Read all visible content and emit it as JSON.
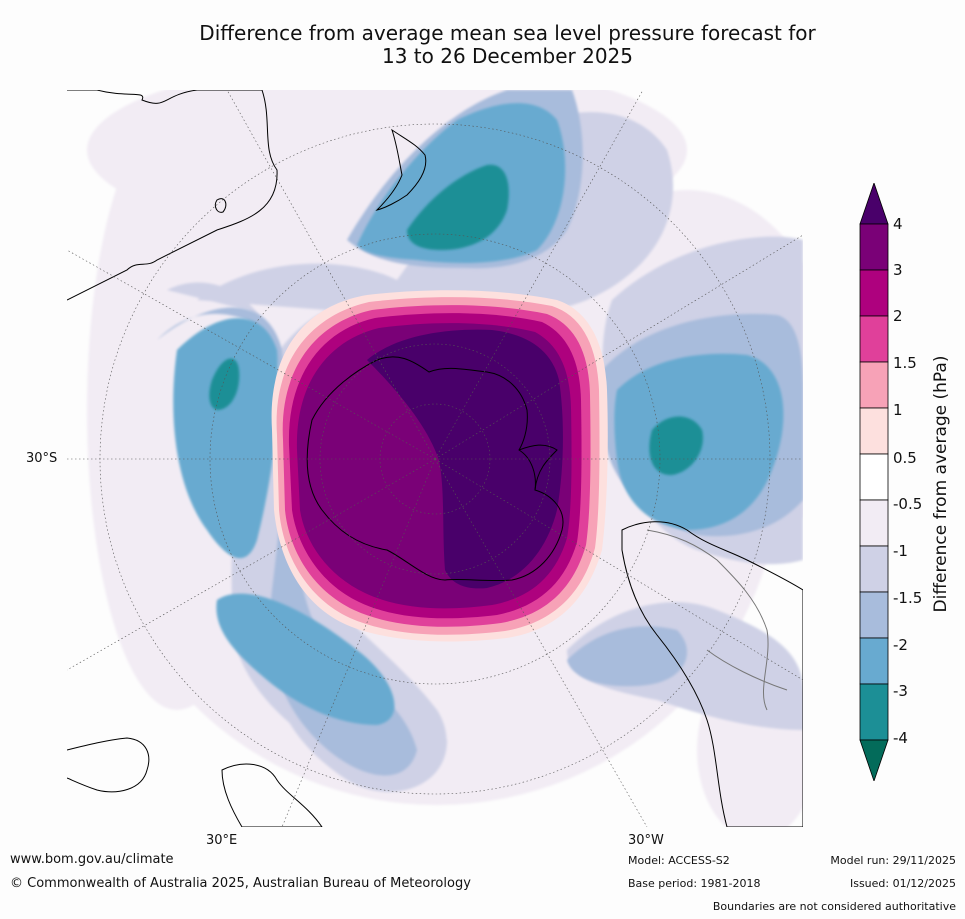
{
  "title": {
    "line1": "Difference from average mean sea level pressure forecast for",
    "line2": "13 to 26 December 2025"
  },
  "map": {
    "projection": "south polar stereographic",
    "latitude_label": "30°S",
    "longitude_labels": [
      "30°E",
      "30°W"
    ]
  },
  "colorbar": {
    "label": "Difference from average (hPa)",
    "levels": [
      "-4",
      "-3",
      "-2",
      "-1.5",
      "-1",
      "-0.5",
      "0.5",
      "1",
      "1.5",
      "2",
      "3",
      "4"
    ],
    "colors": {
      "below_-4": "#036b5a",
      "-4_to_-3": "#1c8f96",
      "-3_to_-2": "#68aad0",
      "-2_to_-1.5": "#a8bcdc",
      "-1.5_to_-1": "#cfd1e6",
      "-1_to_-0.5": "#f2ecf4",
      "-0.5_to_0.5": "#ffffff",
      "0.5_to_1": "#fde0de",
      "1_to_1.5": "#f7a2b7",
      "1.5_to_2": "#e0409a",
      "2_to_3": "#ae017e",
      "3_to_4": "#7a0177",
      "above_4": "#49006a"
    }
  },
  "footer": {
    "website": "www.bom.gov.au/climate",
    "copyright": "© Commonwealth of Australia 2025, Australian Bureau of Meteorology",
    "model": "Model: ACCESS-S2",
    "base_period": "Base period: 1981-2018",
    "model_run": "Model run: 29/11/2025",
    "issued": "Issued: 01/12/2025",
    "disclaimer": "Boundaries are not considered authoritative"
  }
}
